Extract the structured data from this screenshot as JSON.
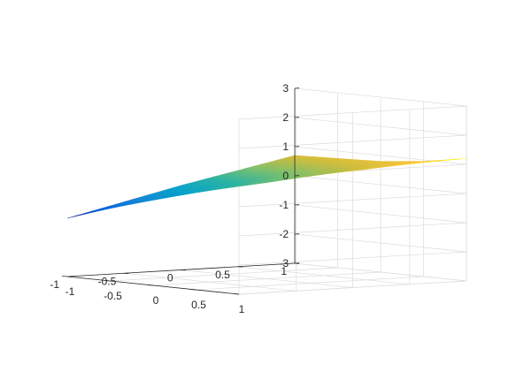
{
  "chart_data": {
    "type": "surface",
    "title": "",
    "xlabel": "",
    "ylabel": "",
    "zlabel": "",
    "xlim": [
      -1,
      1
    ],
    "ylim": [
      -1,
      1
    ],
    "zlim": [
      -3,
      3
    ],
    "grid": true,
    "colormap": "parula",
    "x_ticks": [
      "-1",
      "-0.5",
      "0",
      "0.5",
      "1"
    ],
    "y_ticks": [
      "-1",
      "-0.5",
      "0",
      "0.5",
      "1"
    ],
    "z_ticks": [
      "-3",
      "-2",
      "-1",
      "0",
      "1",
      "2",
      "3"
    ],
    "x": [
      -1,
      -0.5,
      0,
      0.5,
      1
    ],
    "y": [
      -1,
      -0.5,
      0,
      0.5,
      1
    ],
    "z": [
      [
        -1.0,
        -0.5,
        0.0,
        0.5,
        1.0
      ],
      [
        -0.55,
        -0.25,
        0.15,
        0.6,
        1.05
      ],
      [
        -0.1,
        0.05,
        0.3,
        0.7,
        1.1
      ],
      [
        0.3,
        0.35,
        0.5,
        0.8,
        1.15
      ],
      [
        0.7,
        0.75,
        0.8,
        0.95,
        1.2
      ]
    ]
  }
}
